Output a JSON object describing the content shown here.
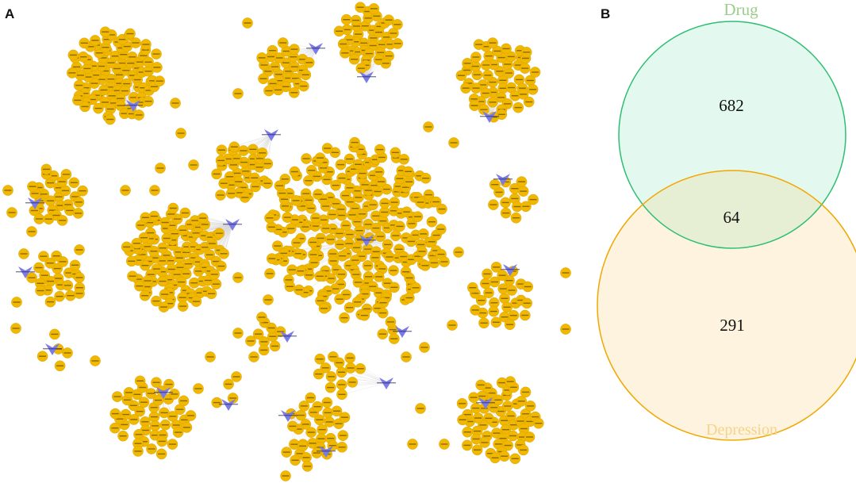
{
  "panels": {
    "a": {
      "letter": "A"
    },
    "b": {
      "letter": "B"
    }
  },
  "network": {
    "node_color": "#F0B800",
    "node_stroke": "#D49A00",
    "compound_color": "#7B7BE6",
    "edge_color": "#d9d9d9",
    "node_count": 746,
    "compound_count": 20
  },
  "venn": {
    "sets": [
      {
        "name": "Drug",
        "color": "#2EBE73",
        "fill": "#E3F8EE",
        "label_color": "#9ACD8A"
      },
      {
        "name": "Depression",
        "color": "#F0A800",
        "fill": "#FDF3DF",
        "label_color": "#F5D48A"
      }
    ],
    "only_drug": "682",
    "intersection": "64",
    "only_depression": "291",
    "intersection_fill": "#E6EFD3"
  }
}
